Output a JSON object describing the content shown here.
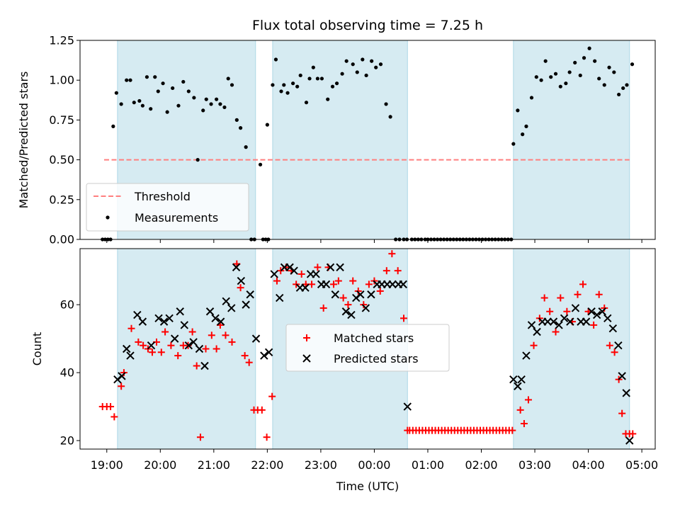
{
  "chart_data": [
    {
      "type": "scatter",
      "title": "Flux total observing time = 7.25 h",
      "xlabel": "",
      "ylabel": "Matched/Predicted stars",
      "xlim": [
        18.5,
        29.25
      ],
      "ylim": [
        0.0,
        1.25
      ],
      "yticks": [
        0.0,
        0.25,
        0.5,
        0.75,
        1.0,
        1.25
      ],
      "ytick_labels": [
        "0.00",
        "0.25",
        "0.50",
        "0.75",
        "1.00",
        "1.25"
      ],
      "shaded_intervals": [
        [
          19.2,
          21.78
        ],
        [
          22.1,
          24.62
        ],
        [
          26.6,
          28.77
        ]
      ],
      "threshold": {
        "name": "Threshold",
        "value": 0.5,
        "x_range": [
          18.95,
          28.77
        ],
        "color": "#ff7f7f"
      },
      "legend": [
        "Threshold",
        "Measurements"
      ],
      "legend_position": "lower-left",
      "series": [
        {
          "name": "Measurements",
          "color": "#000000",
          "x": [
            18.97,
            19.12,
            19.18,
            19.27,
            19.37,
            19.44,
            19.51,
            19.61,
            19.67,
            19.75,
            19.82,
            19.9,
            19.96,
            20.05,
            20.13,
            20.23,
            20.34,
            20.43,
            20.53,
            20.63,
            20.7,
            20.8,
            20.86,
            20.95,
            21.05,
            21.12,
            21.2,
            21.27,
            21.34,
            21.43,
            21.5,
            21.6,
            21.7,
            21.76,
            21.87,
            22.0,
            22.1,
            22.16,
            22.26,
            22.31,
            22.38,
            22.48,
            22.56,
            22.62,
            22.73,
            22.79,
            22.86,
            22.94,
            23.02,
            23.13,
            23.22,
            23.3,
            23.4,
            23.48,
            23.6,
            23.68,
            23.78,
            23.85,
            23.95,
            24.03,
            24.12,
            24.22,
            24.3,
            24.4,
            24.47,
            24.55,
            24.61,
            26.6,
            26.68,
            26.77,
            26.84,
            26.94,
            27.03,
            27.12,
            27.2,
            27.3,
            27.39,
            27.48,
            27.58,
            27.65,
            27.75,
            27.85,
            27.92,
            28.02,
            28.12,
            28.2,
            28.3,
            28.39,
            28.48,
            28.57,
            28.65,
            28.72,
            28.82
          ],
          "y": [
            0.0,
            0.71,
            0.92,
            0.85,
            1.0,
            1.0,
            0.86,
            0.87,
            0.84,
            1.02,
            0.82,
            1.02,
            0.93,
            0.98,
            0.8,
            0.95,
            0.84,
            0.99,
            0.93,
            0.89,
            0.5,
            0.81,
            0.88,
            0.85,
            0.88,
            0.85,
            0.83,
            1.01,
            0.97,
            0.75,
            0.7,
            0.58,
            0.0,
            0.0,
            0.47,
            0.72,
            0.97,
            1.13,
            0.93,
            0.97,
            0.92,
            0.98,
            0.96,
            1.03,
            0.86,
            1.01,
            1.08,
            1.01,
            1.01,
            0.88,
            0.96,
            0.98,
            1.04,
            1.12,
            1.1,
            1.05,
            1.13,
            1.03,
            1.12,
            1.08,
            1.1,
            0.85,
            0.77,
            0.0,
            0.0,
            0.0,
            0.0,
            0.6,
            0.81,
            0.66,
            0.71,
            0.89,
            1.02,
            1.0,
            1.12,
            1.02,
            1.04,
            0.96,
            0.98,
            1.05,
            1.11,
            1.03,
            1.14,
            1.2,
            1.12,
            1.01,
            0.97,
            1.08,
            1.05,
            0.91,
            0.95,
            0.97,
            1.1
          ]
        },
        {
          "name": "Zero measurements",
          "color": "#000000",
          "x": [
            18.92,
            19.02,
            19.07,
            21.92,
            21.97,
            22.02,
            24.7,
            24.76,
            24.82,
            24.88,
            24.95,
            25.0,
            25.06,
            25.12,
            25.18,
            25.24,
            25.3,
            25.36,
            25.42,
            25.48,
            25.54,
            25.6,
            25.66,
            25.72,
            25.78,
            25.84,
            25.9,
            25.96,
            26.02,
            26.08,
            26.14,
            26.2,
            26.26,
            26.32,
            26.38,
            26.44,
            26.5,
            26.56
          ],
          "y": [
            0.0,
            0.0,
            0.0,
            0.0,
            0.0,
            0.0,
            0.0,
            0.0,
            0.0,
            0.0,
            0.0,
            0.0,
            0.0,
            0.0,
            0.0,
            0.0,
            0.0,
            0.0,
            0.0,
            0.0,
            0.0,
            0.0,
            0.0,
            0.0,
            0.0,
            0.0,
            0.0,
            0.0,
            0.0,
            0.0,
            0.0,
            0.0,
            0.0,
            0.0,
            0.0,
            0.0,
            0.0,
            0.0
          ]
        }
      ]
    },
    {
      "type": "scatter",
      "title": "",
      "xlabel": "Time (UTC)",
      "ylabel": "Count",
      "xlim": [
        18.5,
        29.25
      ],
      "ylim": [
        17.5,
        76.5
      ],
      "yticks": [
        20,
        40,
        60
      ],
      "ytick_labels": [
        "20",
        "40",
        "60"
      ],
      "xticks": [
        19,
        20,
        21,
        22,
        23,
        24,
        25,
        26,
        27,
        28,
        29
      ],
      "xtick_labels": [
        "19:00",
        "20:00",
        "21:00",
        "22:00",
        "23:00",
        "00:00",
        "01:00",
        "02:00",
        "03:00",
        "04:00",
        "05:00"
      ],
      "shaded_intervals": [
        [
          19.2,
          21.78
        ],
        [
          22.1,
          24.62
        ],
        [
          26.6,
          28.77
        ]
      ],
      "legend": [
        "Matched stars",
        "Predicted stars"
      ],
      "legend_position": "center",
      "series": [
        {
          "name": "Matched stars",
          "marker": "plus",
          "color": "#ff0000",
          "x": [
            18.92,
            19.0,
            19.07,
            19.14,
            19.27,
            19.32,
            19.46,
            19.59,
            19.68,
            19.77,
            19.85,
            19.93,
            20.02,
            20.09,
            20.2,
            20.33,
            20.43,
            20.52,
            20.6,
            20.68,
            20.75,
            20.85,
            20.96,
            21.05,
            21.12,
            21.22,
            21.34,
            21.43,
            21.5,
            21.58,
            21.66,
            21.75,
            21.82,
            21.9,
            21.99,
            22.09,
            22.18,
            22.25,
            22.35,
            22.45,
            22.54,
            22.64,
            22.72,
            22.83,
            22.94,
            23.05,
            23.14,
            23.24,
            23.33,
            23.42,
            23.51,
            23.6,
            23.7,
            23.8,
            23.9,
            24.0,
            24.11,
            24.23,
            24.33,
            24.44,
            24.55,
            24.62,
            24.66,
            24.72,
            24.78,
            24.84,
            24.9,
            24.96,
            25.02,
            25.08,
            25.14,
            25.2,
            25.26,
            25.32,
            25.38,
            25.44,
            25.5,
            25.56,
            25.62,
            25.68,
            25.74,
            25.8,
            25.86,
            25.92,
            25.98,
            26.04,
            26.1,
            26.16,
            26.22,
            26.28,
            26.34,
            26.4,
            26.46,
            26.52,
            26.58,
            26.73,
            26.8,
            26.88,
            26.98,
            27.09,
            27.18,
            27.28,
            27.39,
            27.48,
            27.6,
            27.7,
            27.8,
            27.9,
            28.0,
            28.1,
            28.2,
            28.3,
            28.4,
            28.49,
            28.57,
            28.63,
            28.7,
            28.77,
            28.83
          ],
          "y": [
            30,
            30,
            30,
            27,
            36,
            40,
            53,
            49,
            48,
            47,
            46,
            49,
            46,
            52,
            48,
            45,
            48,
            48,
            52,
            42,
            21,
            47,
            51,
            47,
            54,
            51,
            49,
            72,
            65,
            45,
            43,
            29,
            29,
            29,
            21,
            33,
            67,
            70,
            71,
            70,
            66,
            69,
            66,
            66,
            71,
            59,
            71,
            66,
            67,
            62,
            60,
            67,
            64,
            60,
            66,
            67,
            64,
            70,
            75,
            70,
            56,
            23,
            23,
            23,
            23,
            23,
            23,
            23,
            23,
            23,
            23,
            23,
            23,
            23,
            23,
            23,
            23,
            23,
            23,
            23,
            23,
            23,
            23,
            23,
            23,
            23,
            23,
            23,
            23,
            23,
            23,
            23,
            23,
            23,
            23,
            29,
            25,
            32,
            48,
            56,
            62,
            58,
            52,
            62,
            58,
            55,
            63,
            66,
            58,
            54,
            63,
            59,
            48,
            46,
            38,
            28,
            22,
            22,
            22
          ]
        },
        {
          "name": "Predicted stars",
          "marker": "x",
          "color": "#000000",
          "x": [
            19.2,
            19.28,
            19.37,
            19.44,
            19.57,
            19.67,
            19.83,
            19.97,
            20.07,
            20.17,
            20.27,
            20.37,
            20.45,
            20.53,
            20.62,
            20.73,
            20.83,
            20.93,
            21.03,
            21.13,
            21.23,
            21.33,
            21.42,
            21.51,
            21.6,
            21.68,
            21.79,
            21.94,
            22.03,
            22.13,
            22.23,
            22.32,
            22.42,
            22.5,
            22.61,
            22.71,
            22.81,
            22.91,
            23.01,
            23.1,
            23.18,
            23.27,
            23.36,
            23.47,
            23.57,
            23.66,
            23.74,
            23.84,
            23.94,
            24.05,
            24.14,
            24.24,
            24.34,
            24.45,
            24.54,
            24.62,
            26.6,
            26.68,
            26.75,
            26.84,
            26.94,
            27.04,
            27.14,
            27.24,
            27.35,
            27.45,
            27.55,
            27.66,
            27.76,
            27.86,
            27.96,
            28.06,
            28.16,
            28.26,
            28.36,
            28.46,
            28.56,
            28.63,
            28.71,
            28.77
          ],
          "y": [
            38,
            39,
            47,
            45,
            57,
            55,
            48,
            56,
            55,
            56,
            50,
            58,
            54,
            48,
            49,
            47,
            42,
            58,
            56,
            55,
            61,
            59,
            71,
            67,
            60,
            63,
            50,
            45,
            46,
            69,
            62,
            71,
            71,
            70,
            65,
            65,
            69,
            69,
            66,
            66,
            71,
            63,
            71,
            58,
            57,
            62,
            63,
            59,
            63,
            66,
            66,
            66,
            66,
            66,
            66,
            30,
            38,
            36,
            38,
            45,
            54,
            52,
            55,
            55,
            55,
            54,
            56,
            55,
            59,
            55,
            55,
            58,
            57,
            58,
            56,
            53,
            48,
            39,
            34,
            20
          ]
        }
      ]
    }
  ]
}
